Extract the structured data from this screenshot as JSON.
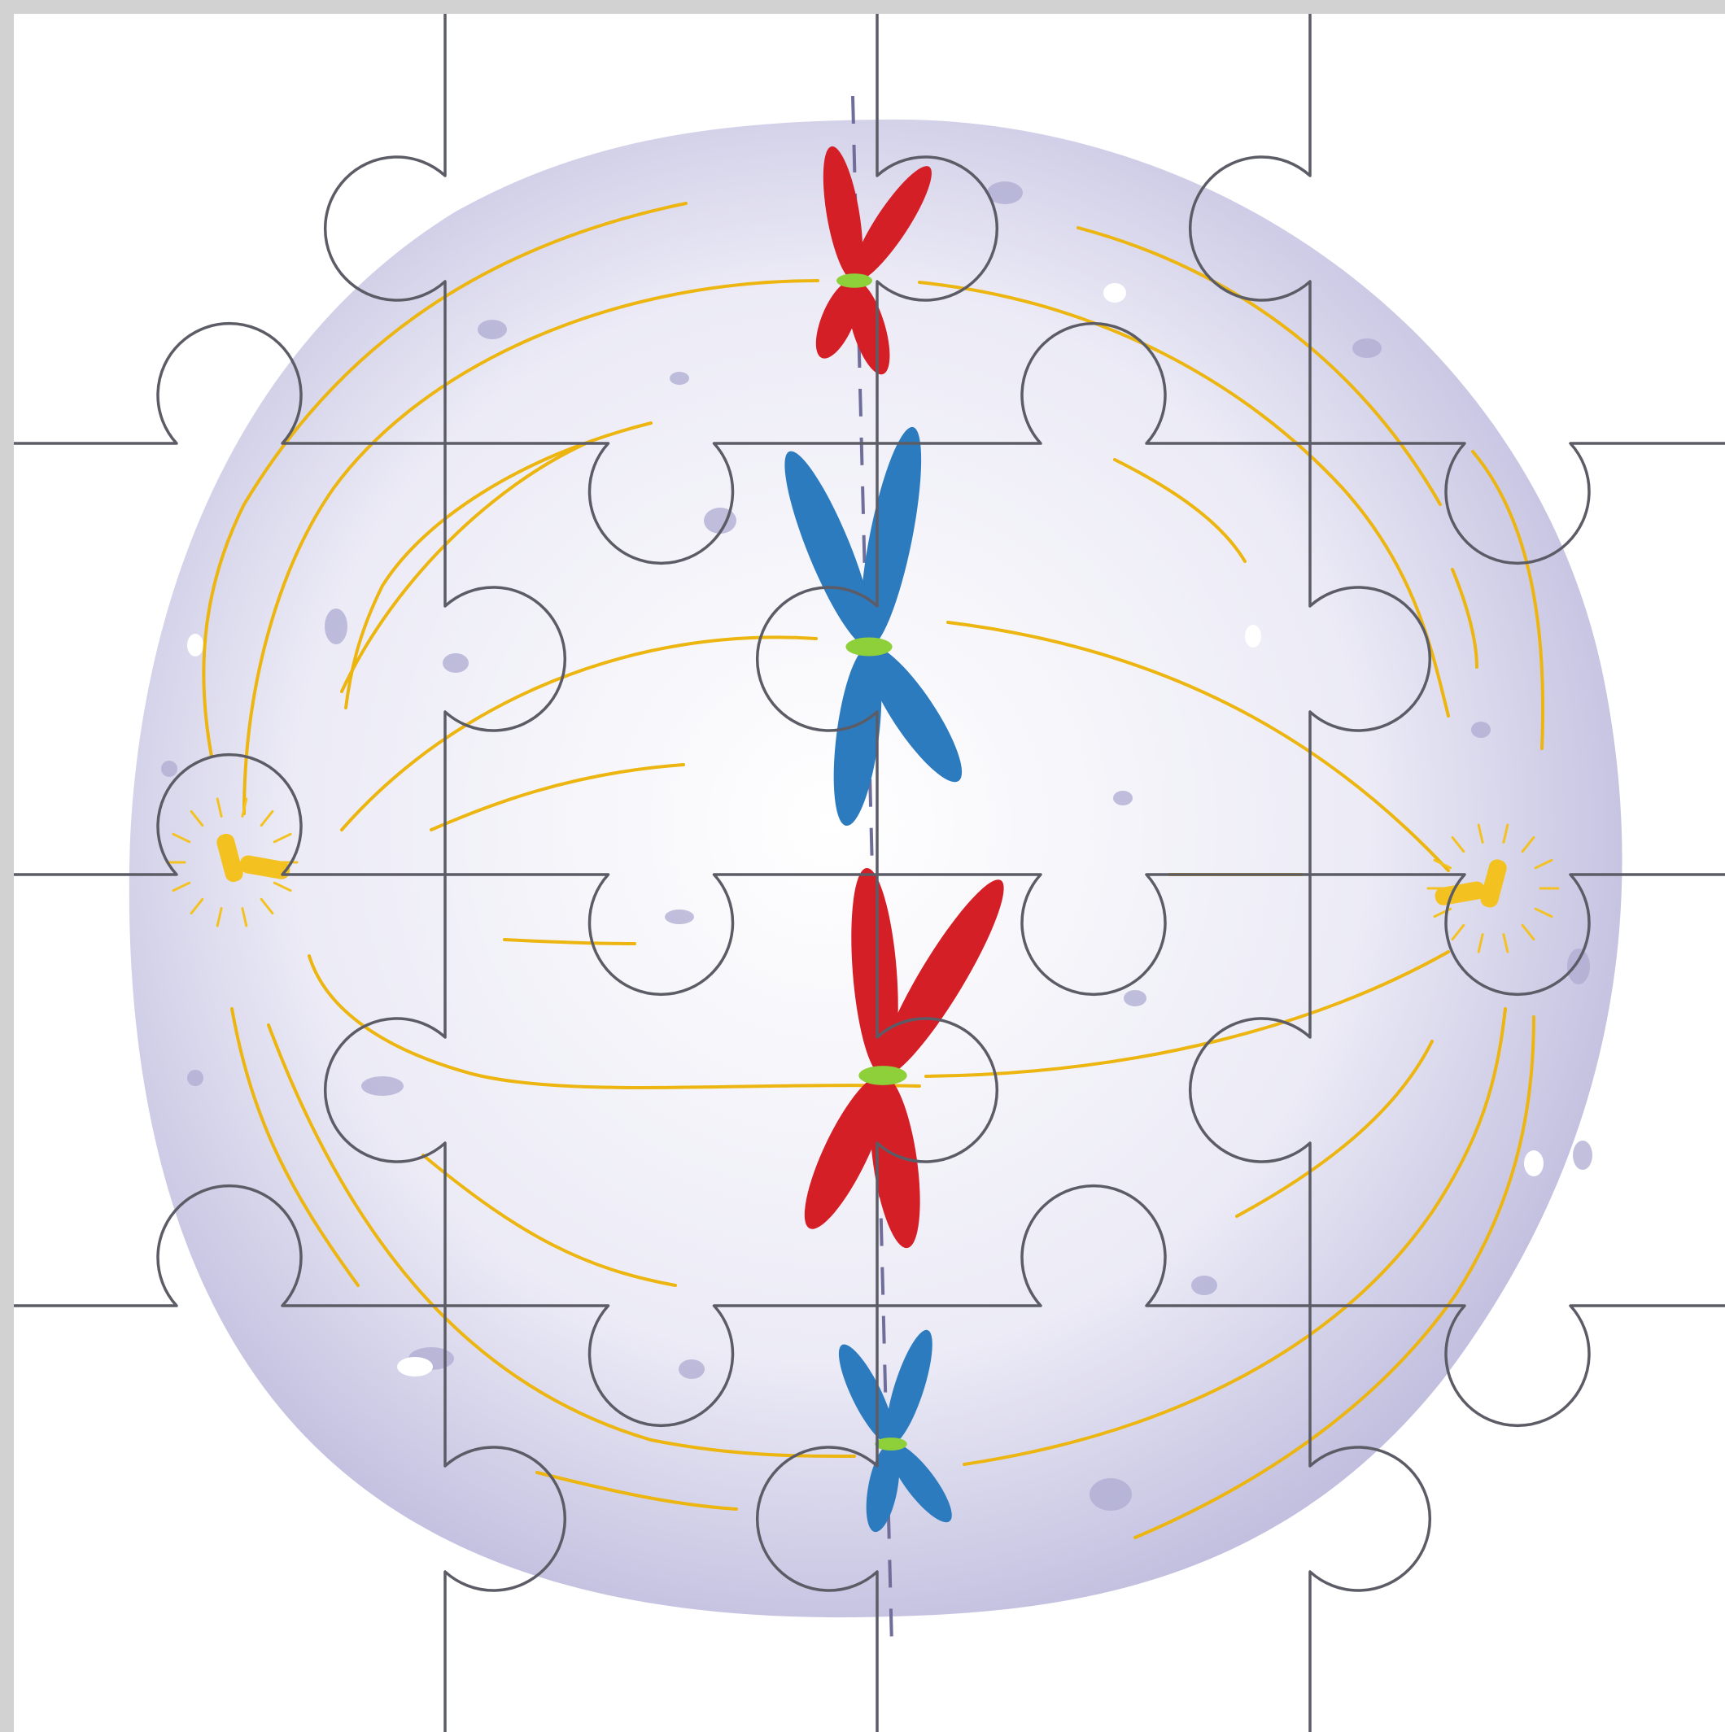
{
  "puzzle": {
    "rows": 4,
    "cols": 4,
    "image_subject": "cell-division-metaphase"
  },
  "colors": {
    "frame": "#d2d2d2",
    "cell_light": "#ffffff",
    "cell_mid": "#ecebf6",
    "cell_edge": "#bcb9dc",
    "spindle": "#ecb50f",
    "centrosome": "#f3c221",
    "chromosome_red": "#d41f27",
    "chromosome_blue": "#2c7bbf",
    "centromere": "#8ed03a",
    "metaphase_plate": "#6f6d9a",
    "piece_outline": "#5c5c66",
    "speckle": "#aeabd2"
  },
  "icons": {
    "chromosome": "chromosome-icon",
    "centrosome": "centrosome-icon"
  }
}
